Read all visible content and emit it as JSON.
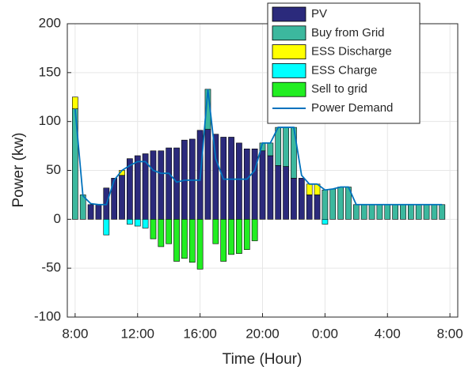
{
  "chart_data": {
    "type": "bar",
    "stacked": true,
    "xlabel": "Time (Hour)",
    "ylabel": "Power (kw)",
    "x": [
      0,
      0.5,
      1,
      1.5,
      2,
      2.5,
      3,
      3.5,
      4,
      4.5,
      5,
      5.5,
      6,
      6.5,
      7,
      7.5,
      8,
      8.5,
      9,
      9.5,
      10,
      10.5,
      11,
      11.5,
      12,
      12.5,
      13,
      13.5,
      14,
      14.5,
      15,
      15.5,
      16,
      16.5,
      17,
      17.5,
      18,
      18.5,
      19,
      19.5,
      20,
      20.5,
      21,
      21.5,
      22,
      22.5,
      23,
      23.5
    ],
    "xlim": [
      -0.5,
      24.5
    ],
    "xticks": [
      {
        "value": 0,
        "label": "8:00"
      },
      {
        "value": 4,
        "label": "12:00"
      },
      {
        "value": 8,
        "label": "16:00"
      },
      {
        "value": 12,
        "label": "20:00"
      },
      {
        "value": 16,
        "label": "0:00"
      },
      {
        "value": 20,
        "label": "4:00"
      },
      {
        "value": 24,
        "label": "8:00"
      }
    ],
    "ylim": [
      -100,
      200
    ],
    "yticks": [
      -100,
      -50,
      0,
      50,
      100,
      150,
      200
    ],
    "grid": true,
    "legend": "northeast",
    "series": [
      {
        "name": "PV",
        "type": "bar",
        "color": "#2b2a7c",
        "values": [
          0,
          0,
          15,
          15,
          32,
          42,
          45,
          62,
          65,
          67,
          70,
          70,
          73,
          73,
          81,
          82,
          91,
          92,
          87,
          84,
          84,
          78,
          72,
          72,
          70,
          65,
          55,
          54,
          42,
          42,
          25,
          25,
          0,
          0,
          0,
          0,
          0,
          0,
          0,
          0,
          0,
          0,
          0,
          0,
          0,
          0,
          0,
          0
        ]
      },
      {
        "name": "Buy from Grid",
        "type": "bar",
        "color": "#3cb89e",
        "values": [
          113,
          25,
          0,
          0,
          0,
          0,
          0,
          0,
          0,
          0,
          0,
          0,
          0,
          0,
          0,
          0,
          0,
          41,
          0,
          0,
          0,
          0,
          0,
          0,
          8,
          13,
          39,
          40,
          52,
          0,
          0,
          0,
          30,
          31,
          33,
          33,
          15,
          15,
          15,
          15,
          15,
          15,
          15,
          15,
          15,
          15,
          15,
          15
        ]
      },
      {
        "name": "ESS Discharge",
        "type": "bar",
        "color": "#ffff00",
        "values": [
          12,
          0,
          0,
          0,
          0,
          0,
          5,
          0,
          0,
          0,
          0,
          0,
          0,
          0,
          0,
          0,
          0,
          0,
          0,
          0,
          0,
          0,
          0,
          0,
          0,
          0,
          0,
          0,
          0,
          0,
          11,
          11,
          0,
          0,
          0,
          0,
          0,
          0,
          0,
          0,
          0,
          0,
          0,
          0,
          0,
          0,
          0,
          0
        ]
      },
      {
        "name": "ESS Charge",
        "type": "bar",
        "color": "#00ffff",
        "values": [
          0,
          0,
          0,
          0,
          -16,
          0,
          0,
          -5,
          -7,
          -9,
          0,
          0,
          0,
          0,
          0,
          0,
          0,
          0,
          0,
          0,
          0,
          0,
          0,
          0,
          0,
          0,
          0,
          0,
          0,
          0,
          0,
          0,
          -5,
          0,
          0,
          0,
          0,
          0,
          0,
          0,
          0,
          0,
          0,
          0,
          0,
          0,
          0,
          0
        ]
      },
      {
        "name": "Sell to grid",
        "type": "bar",
        "color": "#22ee22",
        "values": [
          0,
          0,
          0,
          0,
          0,
          0,
          0,
          0,
          0,
          0,
          -20,
          -28,
          -25,
          -43,
          -40,
          -44,
          -51,
          0,
          -25,
          -43,
          -36,
          -35,
          -31,
          -22,
          0,
          0,
          0,
          0,
          0,
          0,
          0,
          0,
          0,
          0,
          0,
          0,
          0,
          0,
          0,
          0,
          0,
          0,
          0,
          0,
          0,
          0,
          0,
          0
        ]
      },
      {
        "name": "Power Demand",
        "type": "line",
        "color": "#0072bd",
        "values": [
          113,
          24,
          16,
          15,
          15,
          40,
          50,
          55,
          59,
          59,
          50,
          47,
          47,
          38,
          40,
          40,
          40,
          133,
          62,
          41,
          41,
          41,
          41,
          50,
          78,
          78,
          94,
          94,
          94,
          45,
          36,
          36,
          30,
          31,
          33,
          33,
          15,
          15,
          15,
          15,
          15,
          15,
          15,
          15,
          15,
          15,
          15,
          15
        ]
      }
    ]
  }
}
